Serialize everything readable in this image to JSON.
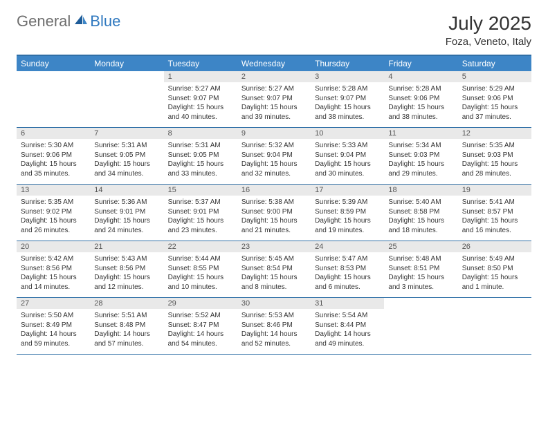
{
  "brand": {
    "general": "General",
    "blue": "Blue"
  },
  "title": {
    "month": "July 2025",
    "location": "Foza, Veneto, Italy"
  },
  "colors": {
    "header_bg": "#3d85c6",
    "header_border": "#2f6fa6",
    "daynum_bg": "#e9e9e9",
    "logo_gray": "#6e6e6e",
    "logo_blue": "#2f78bf",
    "text": "#333333"
  },
  "daysOfWeek": [
    "Sunday",
    "Monday",
    "Tuesday",
    "Wednesday",
    "Thursday",
    "Friday",
    "Saturday"
  ],
  "startOffset": 2,
  "days": [
    {
      "n": "1",
      "sunrise": "Sunrise: 5:27 AM",
      "sunset": "Sunset: 9:07 PM",
      "daylight": "Daylight: 15 hours and 40 minutes."
    },
    {
      "n": "2",
      "sunrise": "Sunrise: 5:27 AM",
      "sunset": "Sunset: 9:07 PM",
      "daylight": "Daylight: 15 hours and 39 minutes."
    },
    {
      "n": "3",
      "sunrise": "Sunrise: 5:28 AM",
      "sunset": "Sunset: 9:07 PM",
      "daylight": "Daylight: 15 hours and 38 minutes."
    },
    {
      "n": "4",
      "sunrise": "Sunrise: 5:28 AM",
      "sunset": "Sunset: 9:06 PM",
      "daylight": "Daylight: 15 hours and 38 minutes."
    },
    {
      "n": "5",
      "sunrise": "Sunrise: 5:29 AM",
      "sunset": "Sunset: 9:06 PM",
      "daylight": "Daylight: 15 hours and 37 minutes."
    },
    {
      "n": "6",
      "sunrise": "Sunrise: 5:30 AM",
      "sunset": "Sunset: 9:06 PM",
      "daylight": "Daylight: 15 hours and 35 minutes."
    },
    {
      "n": "7",
      "sunrise": "Sunrise: 5:31 AM",
      "sunset": "Sunset: 9:05 PM",
      "daylight": "Daylight: 15 hours and 34 minutes."
    },
    {
      "n": "8",
      "sunrise": "Sunrise: 5:31 AM",
      "sunset": "Sunset: 9:05 PM",
      "daylight": "Daylight: 15 hours and 33 minutes."
    },
    {
      "n": "9",
      "sunrise": "Sunrise: 5:32 AM",
      "sunset": "Sunset: 9:04 PM",
      "daylight": "Daylight: 15 hours and 32 minutes."
    },
    {
      "n": "10",
      "sunrise": "Sunrise: 5:33 AM",
      "sunset": "Sunset: 9:04 PM",
      "daylight": "Daylight: 15 hours and 30 minutes."
    },
    {
      "n": "11",
      "sunrise": "Sunrise: 5:34 AM",
      "sunset": "Sunset: 9:03 PM",
      "daylight": "Daylight: 15 hours and 29 minutes."
    },
    {
      "n": "12",
      "sunrise": "Sunrise: 5:35 AM",
      "sunset": "Sunset: 9:03 PM",
      "daylight": "Daylight: 15 hours and 28 minutes."
    },
    {
      "n": "13",
      "sunrise": "Sunrise: 5:35 AM",
      "sunset": "Sunset: 9:02 PM",
      "daylight": "Daylight: 15 hours and 26 minutes."
    },
    {
      "n": "14",
      "sunrise": "Sunrise: 5:36 AM",
      "sunset": "Sunset: 9:01 PM",
      "daylight": "Daylight: 15 hours and 24 minutes."
    },
    {
      "n": "15",
      "sunrise": "Sunrise: 5:37 AM",
      "sunset": "Sunset: 9:01 PM",
      "daylight": "Daylight: 15 hours and 23 minutes."
    },
    {
      "n": "16",
      "sunrise": "Sunrise: 5:38 AM",
      "sunset": "Sunset: 9:00 PM",
      "daylight": "Daylight: 15 hours and 21 minutes."
    },
    {
      "n": "17",
      "sunrise": "Sunrise: 5:39 AM",
      "sunset": "Sunset: 8:59 PM",
      "daylight": "Daylight: 15 hours and 19 minutes."
    },
    {
      "n": "18",
      "sunrise": "Sunrise: 5:40 AM",
      "sunset": "Sunset: 8:58 PM",
      "daylight": "Daylight: 15 hours and 18 minutes."
    },
    {
      "n": "19",
      "sunrise": "Sunrise: 5:41 AM",
      "sunset": "Sunset: 8:57 PM",
      "daylight": "Daylight: 15 hours and 16 minutes."
    },
    {
      "n": "20",
      "sunrise": "Sunrise: 5:42 AM",
      "sunset": "Sunset: 8:56 PM",
      "daylight": "Daylight: 15 hours and 14 minutes."
    },
    {
      "n": "21",
      "sunrise": "Sunrise: 5:43 AM",
      "sunset": "Sunset: 8:56 PM",
      "daylight": "Daylight: 15 hours and 12 minutes."
    },
    {
      "n": "22",
      "sunrise": "Sunrise: 5:44 AM",
      "sunset": "Sunset: 8:55 PM",
      "daylight": "Daylight: 15 hours and 10 minutes."
    },
    {
      "n": "23",
      "sunrise": "Sunrise: 5:45 AM",
      "sunset": "Sunset: 8:54 PM",
      "daylight": "Daylight: 15 hours and 8 minutes."
    },
    {
      "n": "24",
      "sunrise": "Sunrise: 5:47 AM",
      "sunset": "Sunset: 8:53 PM",
      "daylight": "Daylight: 15 hours and 6 minutes."
    },
    {
      "n": "25",
      "sunrise": "Sunrise: 5:48 AM",
      "sunset": "Sunset: 8:51 PM",
      "daylight": "Daylight: 15 hours and 3 minutes."
    },
    {
      "n": "26",
      "sunrise": "Sunrise: 5:49 AM",
      "sunset": "Sunset: 8:50 PM",
      "daylight": "Daylight: 15 hours and 1 minute."
    },
    {
      "n": "27",
      "sunrise": "Sunrise: 5:50 AM",
      "sunset": "Sunset: 8:49 PM",
      "daylight": "Daylight: 14 hours and 59 minutes."
    },
    {
      "n": "28",
      "sunrise": "Sunrise: 5:51 AM",
      "sunset": "Sunset: 8:48 PM",
      "daylight": "Daylight: 14 hours and 57 minutes."
    },
    {
      "n": "29",
      "sunrise": "Sunrise: 5:52 AM",
      "sunset": "Sunset: 8:47 PM",
      "daylight": "Daylight: 14 hours and 54 minutes."
    },
    {
      "n": "30",
      "sunrise": "Sunrise: 5:53 AM",
      "sunset": "Sunset: 8:46 PM",
      "daylight": "Daylight: 14 hours and 52 minutes."
    },
    {
      "n": "31",
      "sunrise": "Sunrise: 5:54 AM",
      "sunset": "Sunset: 8:44 PM",
      "daylight": "Daylight: 14 hours and 49 minutes."
    }
  ]
}
